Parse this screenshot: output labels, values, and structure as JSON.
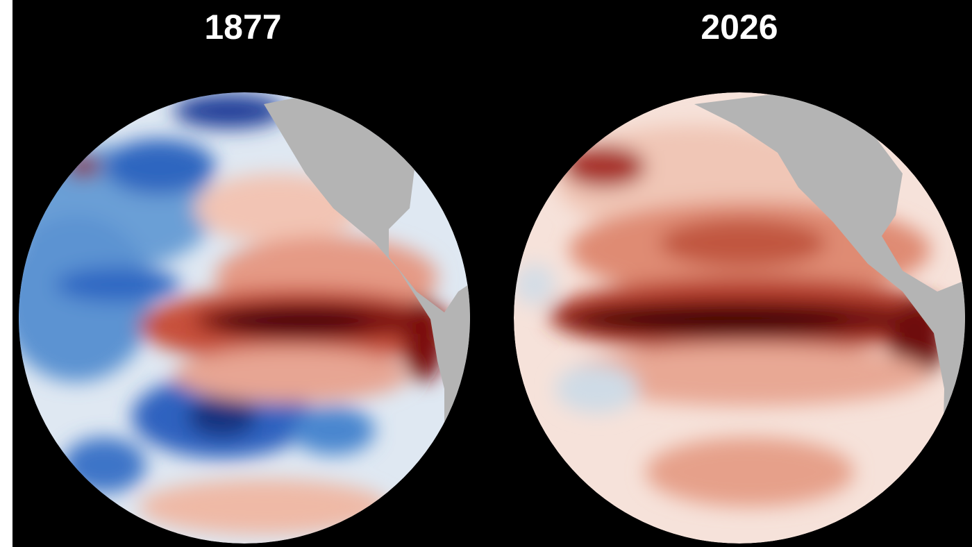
{
  "panels": [
    {
      "title": "1877"
    },
    {
      "title": "2026"
    }
  ]
}
